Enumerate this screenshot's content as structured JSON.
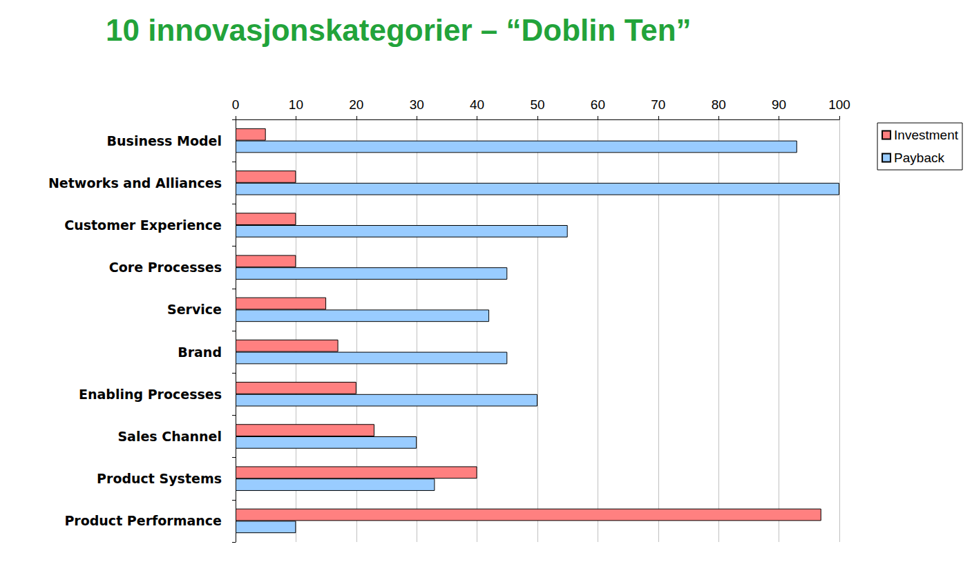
{
  "chart_data": {
    "type": "bar",
    "title": "10 innovasjonskategorier – “Doblin Ten”",
    "orientation": "horizontal",
    "categories": [
      "Business Model",
      "Networks and Alliances",
      "Customer Experience",
      "Core Processes",
      "Service",
      "Brand",
      "Enabling Processes",
      "Sales Channel",
      "Product Systems",
      "Product Performance"
    ],
    "series": [
      {
        "name": "Investment",
        "color": "#ff8080",
        "values": [
          5,
          10,
          10,
          10,
          15,
          17,
          20,
          23,
          40,
          97
        ]
      },
      {
        "name": "Payback",
        "color": "#99ccff",
        "values": [
          93,
          100,
          55,
          45,
          42,
          45,
          50,
          30,
          33,
          10
        ]
      }
    ],
    "xlim": [
      0,
      100
    ],
    "xticks": [
      0,
      10,
      20,
      30,
      40,
      50,
      60,
      70,
      80,
      90,
      100
    ],
    "grid": true,
    "legend": "right"
  }
}
